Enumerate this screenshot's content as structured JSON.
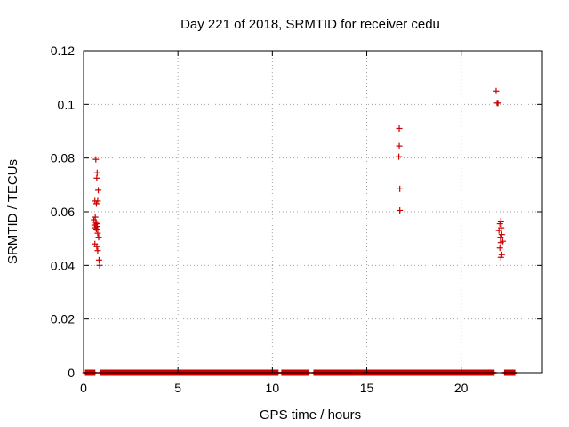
{
  "chart_data": {
    "type": "scatter",
    "title": "Day 221 of 2018, SRMTID for receiver cedu",
    "xlabel": "GPS time / hours",
    "ylabel": "SRMTID / TECUs",
    "xlim": [
      0,
      24.3
    ],
    "ylim": [
      0,
      0.12
    ],
    "xticks": [
      0,
      5,
      10,
      15,
      20
    ],
    "xtick_labels": [
      "0",
      "5",
      "10",
      "15",
      "20"
    ],
    "yticks": [
      0,
      0.02,
      0.04,
      0.06,
      0.08,
      0.1,
      0.12
    ],
    "ytick_labels": [
      "0",
      "0.02",
      "0.04",
      "0.06",
      "0.08",
      "0.1",
      "0.12"
    ],
    "grid": true,
    "marker": "+",
    "color": "#cc0000",
    "series": [
      {
        "name": "SRMTID",
        "points": [
          [
            0.65,
            0.0795
          ],
          [
            0.72,
            0.0745
          ],
          [
            0.7,
            0.0725
          ],
          [
            0.78,
            0.068
          ],
          [
            0.6,
            0.064
          ],
          [
            0.75,
            0.064
          ],
          [
            0.68,
            0.063
          ],
          [
            0.62,
            0.058
          ],
          [
            0.55,
            0.057
          ],
          [
            0.65,
            0.056
          ],
          [
            0.7,
            0.0555
          ],
          [
            0.58,
            0.055
          ],
          [
            0.73,
            0.0545
          ],
          [
            0.62,
            0.054
          ],
          [
            0.68,
            0.0535
          ],
          [
            0.75,
            0.052
          ],
          [
            0.8,
            0.0505
          ],
          [
            0.6,
            0.048
          ],
          [
            0.7,
            0.047
          ],
          [
            0.75,
            0.0455
          ],
          [
            0.82,
            0.042
          ],
          [
            0.85,
            0.04
          ],
          [
            16.72,
            0.091
          ],
          [
            16.72,
            0.0845
          ],
          [
            16.7,
            0.0805
          ],
          [
            16.75,
            0.0685
          ],
          [
            16.75,
            0.0605
          ],
          [
            21.85,
            0.105
          ],
          [
            21.9,
            0.1005
          ],
          [
            21.95,
            0.1005
          ],
          [
            22.1,
            0.0565
          ],
          [
            22.05,
            0.0555
          ],
          [
            22.12,
            0.054
          ],
          [
            22.0,
            0.053
          ],
          [
            22.15,
            0.0515
          ],
          [
            22.08,
            0.0505
          ],
          [
            22.2,
            0.049
          ],
          [
            22.1,
            0.0485
          ],
          [
            22.05,
            0.0465
          ],
          [
            22.15,
            0.044
          ],
          [
            22.1,
            0.043
          ]
        ],
        "zero_runs": [
          [
            0.1,
            0.6
          ],
          [
            0.9,
            10.3
          ],
          [
            10.5,
            11.9
          ],
          [
            12.2,
            21.75
          ],
          [
            22.3,
            22.85
          ]
        ]
      }
    ]
  }
}
